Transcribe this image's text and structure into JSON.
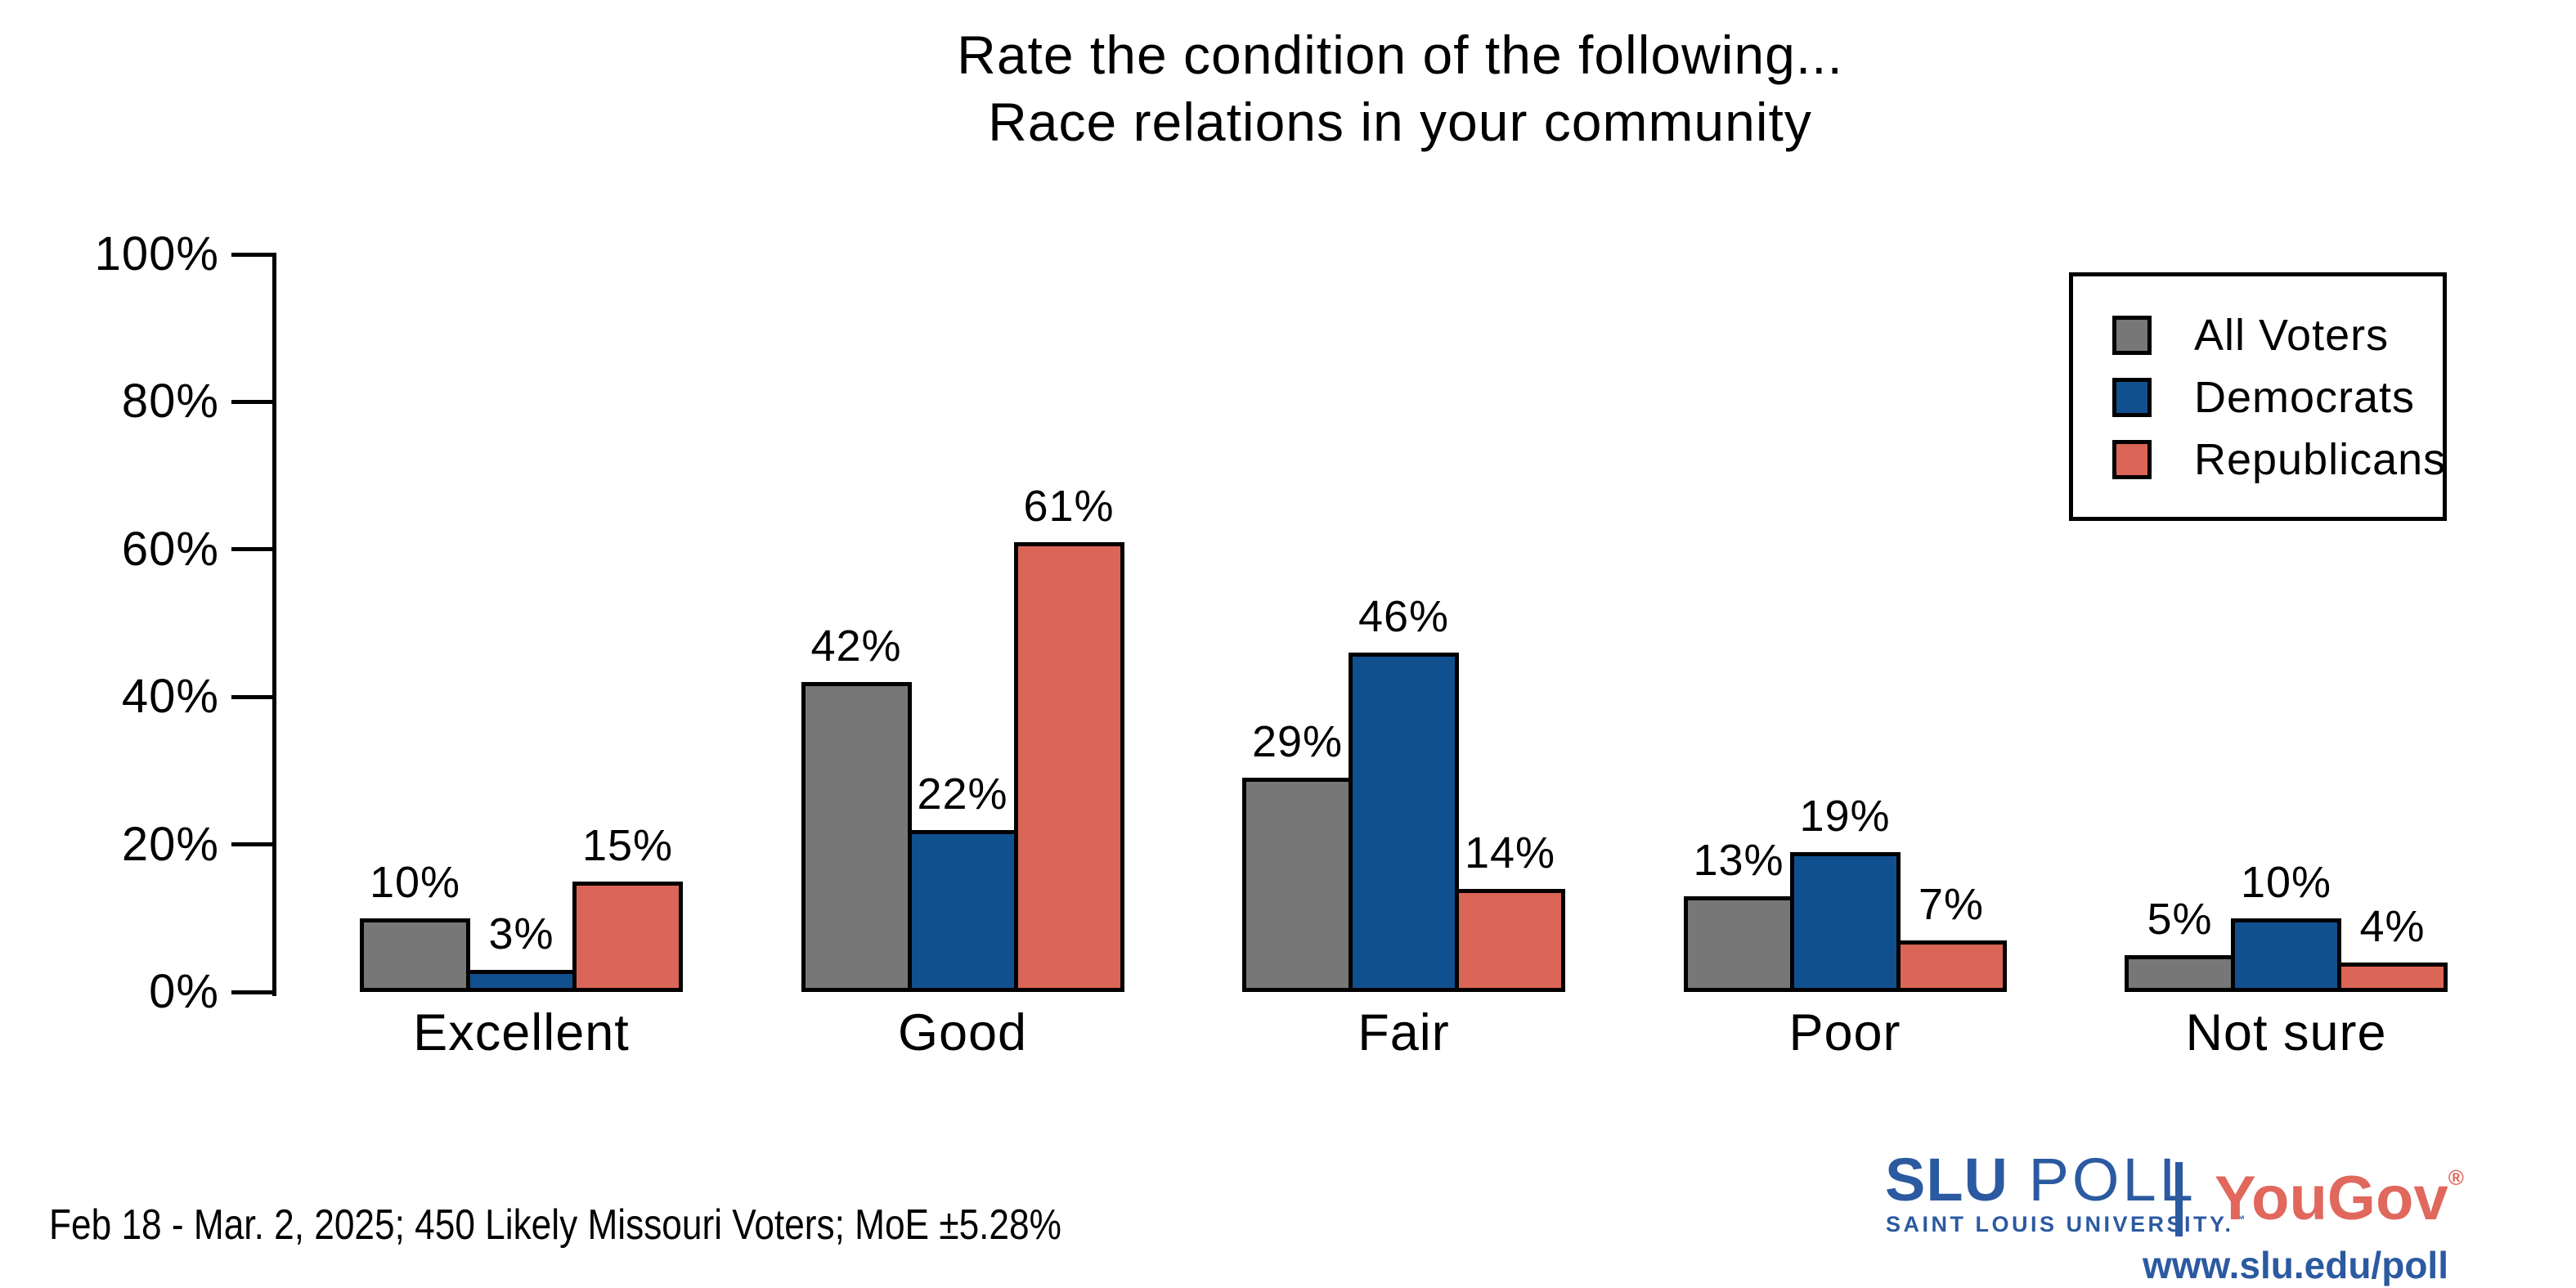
{
  "title": {
    "line1": "Rate the condition of the following...",
    "line2": "Race relations in your community"
  },
  "chart_data": {
    "type": "bar",
    "title": "Rate the condition of the following... Race relations in your community",
    "categories": [
      "Excellent",
      "Good",
      "Fair",
      "Poor",
      "Not sure"
    ],
    "series": [
      {
        "name": "All Voters",
        "color": "#777778",
        "values": [
          10,
          42,
          29,
          13,
          5
        ]
      },
      {
        "name": "Democrats",
        "color": "#11508F",
        "values": [
          3,
          22,
          46,
          19,
          10
        ]
      },
      {
        "name": "Republicans",
        "color": "#DB6557",
        "values": [
          15,
          61,
          14,
          7,
          4
        ]
      }
    ],
    "value_labels": [
      [
        "10%",
        "42%",
        "29%",
        "13%",
        "5%"
      ],
      [
        "3%",
        "22%",
        "46%",
        "19%",
        "10%"
      ],
      [
        "15%",
        "61%",
        "14%",
        "7%",
        "4%"
      ]
    ],
    "xlabel": "",
    "ylabel": "",
    "y_ticks": [
      "0%",
      "20%",
      "40%",
      "60%",
      "80%",
      "100%"
    ],
    "ylim": [
      0,
      100
    ],
    "grid": false,
    "legend_position": "upper right",
    "bar_outline_color": "#000000"
  },
  "footer": {
    "note": "Feb 18 - Mar. 2, 2025; 450 Likely Missouri Voters; MoE ±5.28%"
  },
  "branding": {
    "slu": "SLU",
    "poll": "POLL",
    "subtitle": "SAINT LOUIS UNIVERSITY.",
    "trademark": "™",
    "yougov": "YouGov",
    "registered": "®",
    "url": "www.slu.edu/poll",
    "slu_blue": "#2B5AA1",
    "yougov_red": "#E0685C"
  }
}
